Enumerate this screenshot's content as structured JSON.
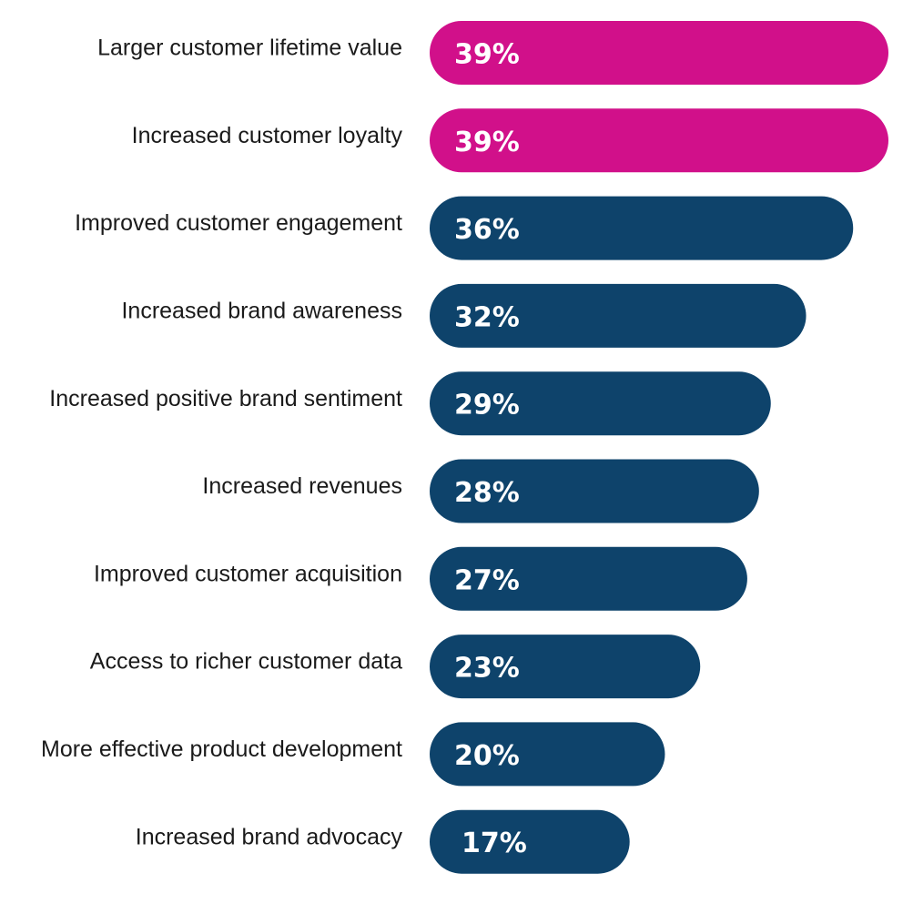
{
  "chart_data": {
    "type": "bar",
    "orientation": "horizontal",
    "categories": [
      "Larger customer lifetime value",
      "Increased customer loyalty",
      "Improved customer engagement",
      "Increased brand awareness",
      "Increased positive brand sentiment",
      "Increased revenues",
      "Improved customer acquisition",
      "Access to richer customer data",
      "More effective product development",
      "Increased brand advocacy"
    ],
    "values": [
      39,
      39,
      36,
      32,
      29,
      28,
      27,
      23,
      20,
      17
    ],
    "value_labels": [
      "39%",
      "39%",
      "36%",
      "32%",
      "29%",
      "28%",
      "27%",
      "23%",
      "20%",
      "17%"
    ],
    "unit": "%",
    "xlim": [
      0,
      39
    ],
    "title": "",
    "xlabel": "",
    "ylabel": "",
    "grid": false,
    "legend": "none",
    "colors": {
      "highlight": "#d1108a",
      "default": "#0e436b",
      "label_text": "#1a1a1a",
      "value_text": "#ffffff"
    },
    "highlighted_indices": [
      0,
      1
    ]
  }
}
